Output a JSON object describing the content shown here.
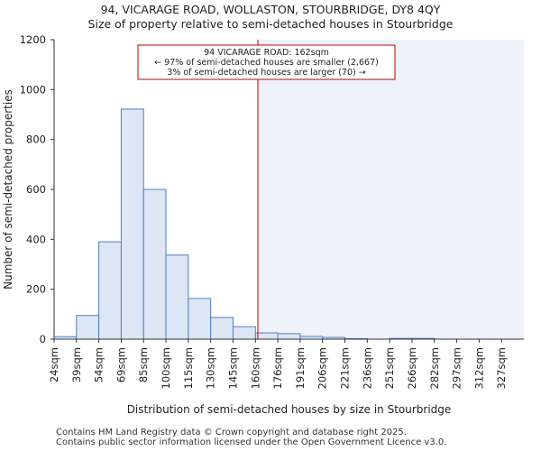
{
  "chart_data": {
    "type": "bar",
    "title": "94, VICARAGE ROAD, WOLLASTON, STOURBRIDGE, DY8 4QY",
    "subtitle": "Size of property relative to semi-detached houses in Stourbridge",
    "xlabel": "Distribution of semi-detached houses by size in Stourbridge",
    "ylabel": "Number of semi-detached properties",
    "ylim": [
      0,
      1200
    ],
    "yticks": [
      0,
      200,
      400,
      600,
      800,
      1000,
      1200
    ],
    "categories": [
      "24sqm",
      "39sqm",
      "54sqm",
      "69sqm",
      "85sqm",
      "100sqm",
      "115sqm",
      "130sqm",
      "145sqm",
      "160sqm",
      "176sqm",
      "191sqm",
      "206sqm",
      "221sqm",
      "236sqm",
      "251sqm",
      "266sqm",
      "282sqm",
      "297sqm",
      "312sqm",
      "327sqm"
    ],
    "values": [
      10,
      95,
      390,
      922,
      600,
      337,
      163,
      87,
      50,
      25,
      22,
      11,
      7,
      2,
      0,
      3,
      3,
      0,
      0,
      0,
      0
    ],
    "marker": {
      "value_sqm": 162,
      "line1": "94 VICARAGE ROAD: 162sqm",
      "line2": "← 97% of semi-detached houses are smaller (2,667)",
      "line3": "3% of semi-detached houses are larger (70) →",
      "color": "#cc0000"
    },
    "bar_fill": "#dce6f4",
    "bar_stroke": "#4f7fc0",
    "highlight_bg": "#eef2fb"
  },
  "footer": {
    "line1": "Contains HM Land Registry data © Crown copyright and database right 2025.",
    "line2": "Contains public sector information licensed under the Open Government Licence v3.0."
  }
}
